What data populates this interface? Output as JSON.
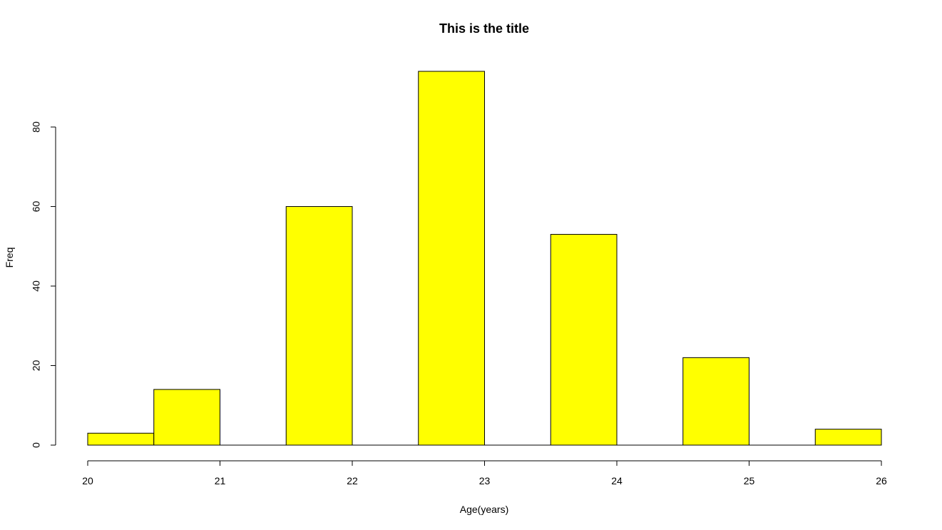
{
  "chart_data": {
    "type": "bar",
    "title": "This is the title",
    "xlabel": "Age(years)",
    "ylabel": "Freq",
    "bins": [
      {
        "x0": 20.0,
        "x1": 20.5,
        "value": 3
      },
      {
        "x0": 20.5,
        "x1": 21.0,
        "value": 14
      },
      {
        "x0": 21.0,
        "x1": 21.5,
        "value": 0
      },
      {
        "x0": 21.5,
        "x1": 22.0,
        "value": 60
      },
      {
        "x0": 22.0,
        "x1": 22.5,
        "value": 0
      },
      {
        "x0": 22.5,
        "x1": 23.0,
        "value": 94
      },
      {
        "x0": 23.0,
        "x1": 23.5,
        "value": 0
      },
      {
        "x0": 23.5,
        "x1": 24.0,
        "value": 53
      },
      {
        "x0": 24.0,
        "x1": 24.5,
        "value": 0
      },
      {
        "x0": 24.5,
        "x1": 25.0,
        "value": 22
      },
      {
        "x0": 25.0,
        "x1": 25.5,
        "value": 0
      },
      {
        "x0": 25.5,
        "x1": 26.0,
        "value": 4
      }
    ],
    "xlim": [
      20,
      26
    ],
    "ylim": [
      0,
      94
    ],
    "x_ticks": [
      20,
      21,
      22,
      23,
      24,
      25,
      26
    ],
    "y_ticks": [
      0,
      20,
      40,
      60,
      80
    ],
    "bar_color": "#ffff00",
    "bar_border_color": "#000000",
    "grid": false,
    "legend": "none"
  }
}
